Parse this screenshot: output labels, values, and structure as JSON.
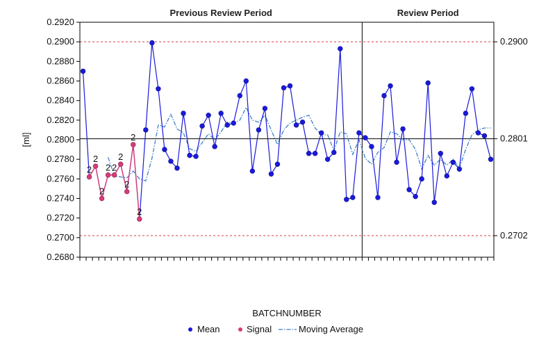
{
  "chart_data": {
    "type": "line",
    "xlabel": "BATCHNUMBER",
    "ylabel": "[ml]",
    "ylim": [
      0.268,
      0.292
    ],
    "y_ticks": [
      "0.2920",
      "0.2900",
      "0.2880",
      "0.2860",
      "0.2840",
      "0.2820",
      "0.2800",
      "0.2780",
      "0.2760",
      "0.2740",
      "0.2720",
      "0.2700",
      "0.2680"
    ],
    "right_axis_labels": [
      {
        "value": 0.29,
        "label": "0.2900"
      },
      {
        "value": 0.2801,
        "label": "0.2801"
      },
      {
        "value": 0.2702,
        "label": "0.2702"
      }
    ],
    "center_line": 0.2801,
    "upper_limit": 0.29,
    "lower_limit": 0.2702,
    "periods": [
      {
        "label": "Previous Review Period"
      },
      {
        "label": "Review Period"
      }
    ],
    "review_period_start_index": 45,
    "legend": [
      "Mean",
      "Signal",
      "Moving Average"
    ],
    "colors": {
      "mean": "#1a1adb",
      "signal": "#d63c7a",
      "moving_average": "#3c82c8",
      "limit": "#d23c4b",
      "center": "#000000"
    },
    "series": [
      {
        "name": "Mean",
        "values": [
          0.287,
          0.2762,
          0.2773,
          0.274,
          0.2764,
          0.2764,
          0.2775,
          0.2747,
          0.2795,
          0.2719,
          0.281,
          0.2899,
          0.2852,
          0.279,
          0.2778,
          0.2771,
          0.2827,
          0.2784,
          0.2783,
          0.2814,
          0.2825,
          0.2793,
          0.2827,
          0.2815,
          0.2817,
          0.2845,
          0.286,
          0.2768,
          0.281,
          0.2832,
          0.2765,
          0.2775,
          0.2853,
          0.2855,
          0.2815,
          0.2818,
          0.2786,
          0.2786,
          0.2807,
          0.278,
          0.2787,
          0.2893,
          0.2739,
          0.2741,
          0.2807,
          0.2802,
          0.2793,
          0.2741,
          0.2845,
          0.2855,
          0.2777,
          0.2811,
          0.2749,
          0.2742,
          0.276,
          0.2858,
          0.2736,
          0.2786,
          0.2763,
          0.2777,
          0.277,
          0.2827,
          0.2852,
          0.2807,
          0.2804,
          0.278
        ]
      },
      {
        "name": "Moving Average",
        "values": [
          null,
          null,
          null,
          null,
          0.2782,
          0.2763,
          0.2762,
          0.2761,
          0.2768,
          0.276,
          0.2758,
          0.2781,
          0.2815,
          0.2813,
          0.2826,
          0.2811,
          0.2807,
          0.2791,
          0.2788,
          0.2797,
          0.2806,
          0.28,
          0.2808,
          0.2818,
          0.2817,
          0.282,
          0.2833,
          0.282,
          0.2818,
          0.2825,
          0.281,
          0.2795,
          0.281,
          0.2817,
          0.282,
          0.2823,
          0.2825,
          0.2812,
          0.2805,
          0.2805,
          0.2789,
          0.2808,
          0.2806,
          0.2785,
          0.28,
          0.2781,
          0.2775,
          0.2787,
          0.2792,
          0.2808,
          0.2806,
          0.28,
          0.28,
          0.279,
          0.277,
          0.2784,
          0.2774,
          0.278,
          0.2774,
          0.278,
          0.2771,
          0.279,
          0.2805,
          0.281,
          0.2812,
          0.2812
        ]
      }
    ],
    "signals": [
      {
        "index": 1,
        "label": "2"
      },
      {
        "index": 2,
        "label": "2"
      },
      {
        "index": 3,
        "label": "2"
      },
      {
        "index": 4,
        "label": "2"
      },
      {
        "index": 5,
        "label": "2"
      },
      {
        "index": 6,
        "label": "2"
      },
      {
        "index": 7,
        "label": "2"
      },
      {
        "index": 8,
        "label": "2"
      },
      {
        "index": 9,
        "label": "2"
      }
    ]
  }
}
